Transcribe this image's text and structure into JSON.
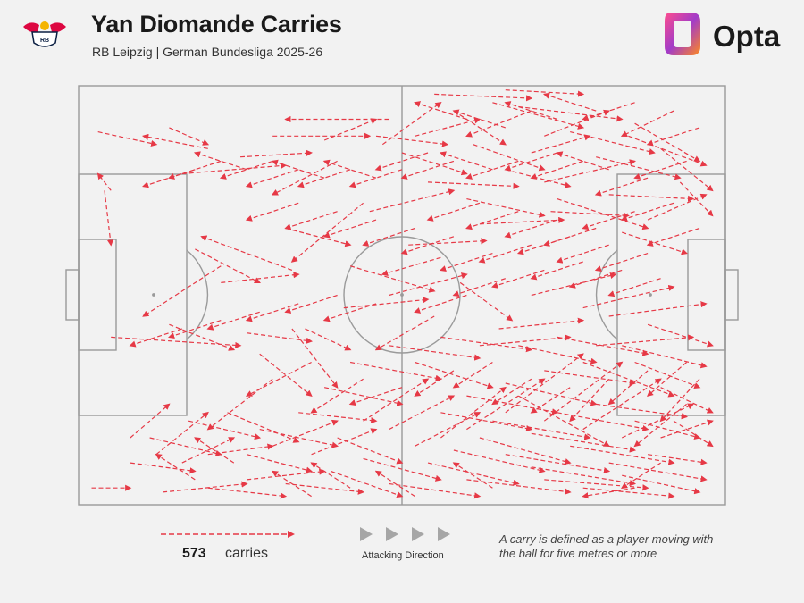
{
  "header": {
    "title": "Yan Diomande Carries",
    "subtitle": "RB Leipzig | German Bundesliga 2025-26",
    "club_logo_icon": "rb-leipzig-crest-icon",
    "brand": "Opta",
    "brand_icon": "opta-logo-icon"
  },
  "legend": {
    "count": "573",
    "count_label": "carries",
    "direction_label": "Attacking Direction",
    "definition": "A carry is defined as a player moving with the ball for five metres or more"
  },
  "colors": {
    "background": "#f2f2f2",
    "pitch_lines": "#9a9a9a",
    "carry": "#e63946",
    "direction_arrows": "#a6a6a6"
  },
  "carries": {
    "total": 573,
    "units": "pitch-percent, 0-100 along length (attacking left to right) and 0-100 across width (top to bottom)",
    "segments": [
      [
        3,
        11,
        12,
        14
      ],
      [
        20,
        15,
        10,
        12
      ],
      [
        4,
        25,
        5,
        38
      ],
      [
        5,
        25,
        3,
        21
      ],
      [
        14,
        10,
        20,
        14
      ],
      [
        16,
        21,
        32,
        19
      ],
      [
        25,
        17,
        36,
        16
      ],
      [
        30,
        12,
        45,
        12
      ],
      [
        38,
        13,
        46,
        8
      ],
      [
        46,
        12,
        57,
        14
      ],
      [
        50,
        16,
        60,
        21
      ],
      [
        48,
        8,
        32,
        8
      ],
      [
        40,
        18,
        30,
        26
      ],
      [
        44,
        28,
        33,
        42
      ],
      [
        33,
        44,
        19,
        36
      ],
      [
        22,
        43,
        10,
        55
      ],
      [
        14,
        57,
        24,
        63
      ],
      [
        5,
        60,
        25,
        62
      ],
      [
        26,
        59,
        36,
        61
      ],
      [
        35,
        58,
        42,
        63
      ],
      [
        41,
        53,
        54,
        51
      ],
      [
        55,
        55,
        46,
        63
      ],
      [
        18,
        39,
        28,
        47
      ],
      [
        22,
        47,
        34,
        45
      ],
      [
        32,
        34,
        42,
        38
      ],
      [
        42,
        43,
        55,
        49
      ],
      [
        45,
        30,
        58,
        25
      ],
      [
        54,
        23,
        68,
        24
      ],
      [
        66,
        20,
        76,
        24
      ],
      [
        73,
        30,
        85,
        31
      ],
      [
        84,
        35,
        94,
        40
      ],
      [
        82,
        26,
        95,
        27
      ],
      [
        80,
        17,
        93,
        22
      ],
      [
        76,
        11,
        89,
        16
      ],
      [
        72,
        12,
        82,
        6
      ],
      [
        70,
        6,
        60,
        12
      ],
      [
        64,
        4,
        78,
        10
      ],
      [
        58,
        6,
        66,
        14
      ],
      [
        52,
        12,
        62,
        8
      ],
      [
        47,
        14,
        56,
        4
      ],
      [
        61,
        14,
        72,
        20
      ],
      [
        70,
        16,
        79,
        12
      ],
      [
        55,
        2,
        70,
        3
      ],
      [
        66,
        1,
        78,
        2
      ],
      [
        68,
        5,
        84,
        8
      ],
      [
        86,
        9,
        96,
        18
      ],
      [
        90,
        15,
        98,
        25
      ],
      [
        93,
        23,
        98,
        31
      ],
      [
        88,
        32,
        97,
        26
      ],
      [
        85,
        12,
        97,
        19
      ],
      [
        72,
        23,
        86,
        18
      ],
      [
        74,
        27,
        88,
        34
      ],
      [
        60,
        27,
        72,
        31
      ],
      [
        62,
        33,
        75,
        32
      ],
      [
        51,
        38,
        63,
        37
      ],
      [
        56,
        41,
        47,
        45
      ],
      [
        48,
        50,
        60,
        45
      ],
      [
        59,
        47,
        67,
        56
      ],
      [
        65,
        58,
        78,
        56
      ],
      [
        70,
        50,
        83,
        45
      ],
      [
        78,
        53,
        92,
        48
      ],
      [
        82,
        55,
        97,
        52
      ],
      [
        88,
        57,
        98,
        62
      ],
      [
        84,
        62,
        97,
        67
      ],
      [
        78,
        66,
        92,
        74
      ],
      [
        72,
        68,
        86,
        71
      ],
      [
        66,
        71,
        80,
        76
      ],
      [
        60,
        74,
        74,
        78
      ],
      [
        56,
        78,
        70,
        82
      ],
      [
        64,
        80,
        79,
        84
      ],
      [
        70,
        83,
        86,
        87
      ],
      [
        76,
        86,
        92,
        90
      ],
      [
        82,
        90,
        97,
        94
      ],
      [
        70,
        91,
        86,
        95
      ],
      [
        60,
        94,
        76,
        97
      ],
      [
        54,
        90,
        68,
        95
      ],
      [
        48,
        95,
        62,
        98
      ],
      [
        44,
        89,
        56,
        94
      ],
      [
        39,
        92,
        50,
        98
      ],
      [
        32,
        95,
        44,
        97
      ],
      [
        26,
        94,
        38,
        92
      ],
      [
        20,
        96,
        32,
        98
      ],
      [
        13,
        97,
        26,
        95
      ],
      [
        2,
        96,
        8,
        96
      ],
      [
        8,
        90,
        18,
        92
      ],
      [
        11,
        84,
        22,
        88
      ],
      [
        17,
        80,
        28,
        84
      ],
      [
        23,
        78,
        34,
        85
      ],
      [
        28,
        82,
        40,
        86
      ],
      [
        34,
        78,
        46,
        80
      ],
      [
        38,
        72,
        50,
        76
      ],
      [
        42,
        66,
        56,
        70
      ],
      [
        48,
        62,
        62,
        65
      ],
      [
        52,
        66,
        64,
        72
      ],
      [
        56,
        60,
        70,
        63
      ],
      [
        62,
        62,
        76,
        60
      ],
      [
        68,
        62,
        80,
        66
      ],
      [
        74,
        60,
        88,
        64
      ],
      [
        80,
        62,
        95,
        60
      ],
      [
        86,
        66,
        96,
        72
      ],
      [
        90,
        72,
        98,
        78
      ],
      [
        92,
        80,
        98,
        86
      ],
      [
        86,
        80,
        96,
        84
      ],
      [
        80,
        76,
        94,
        79
      ],
      [
        74,
        78,
        88,
        82
      ],
      [
        68,
        74,
        82,
        86
      ],
      [
        62,
        84,
        76,
        90
      ],
      [
        58,
        87,
        72,
        92
      ],
      [
        66,
        88,
        82,
        92
      ],
      [
        72,
        94,
        88,
        96
      ],
      [
        78,
        96,
        92,
        98
      ],
      [
        84,
        93,
        96,
        97
      ],
      [
        88,
        88,
        97,
        90
      ],
      [
        90,
        84,
        98,
        80
      ],
      [
        84,
        84,
        95,
        76
      ],
      [
        78,
        82,
        90,
        70
      ],
      [
        72,
        80,
        84,
        66
      ],
      [
        66,
        78,
        78,
        64
      ],
      [
        60,
        82,
        72,
        70
      ],
      [
        56,
        84,
        66,
        72
      ],
      [
        52,
        86,
        62,
        78
      ],
      [
        48,
        82,
        58,
        74
      ],
      [
        44,
        80,
        54,
        70
      ],
      [
        40,
        84,
        50,
        90
      ],
      [
        36,
        88,
        46,
        82
      ],
      [
        30,
        86,
        40,
        80
      ],
      [
        26,
        88,
        36,
        92
      ],
      [
        20,
        88,
        30,
        86
      ],
      [
        16,
        90,
        24,
        84
      ],
      [
        12,
        88,
        20,
        78
      ],
      [
        8,
        84,
        14,
        76
      ],
      [
        30,
        70,
        20,
        82
      ],
      [
        36,
        66,
        26,
        74
      ],
      [
        33,
        58,
        40,
        72
      ],
      [
        28,
        64,
        36,
        74
      ],
      [
        44,
        70,
        36,
        78
      ],
      [
        50,
        72,
        42,
        76
      ],
      [
        58,
        68,
        52,
        74
      ],
      [
        64,
        66,
        58,
        72
      ],
      [
        70,
        70,
        64,
        76
      ],
      [
        76,
        72,
        70,
        78
      ],
      [
        82,
        70,
        76,
        80
      ],
      [
        88,
        68,
        82,
        76
      ],
      [
        94,
        66,
        88,
        74
      ],
      [
        96,
        70,
        90,
        80
      ],
      [
        94,
        76,
        86,
        86
      ],
      [
        90,
        90,
        84,
        96
      ],
      [
        86,
        96,
        78,
        98
      ],
      [
        64,
        96,
        58,
        90
      ],
      [
        52,
        98,
        46,
        92
      ],
      [
        42,
        96,
        36,
        90
      ],
      [
        36,
        98,
        30,
        92
      ],
      [
        24,
        90,
        18,
        84
      ],
      [
        18,
        94,
        12,
        88
      ],
      [
        60,
        8,
        52,
        4
      ],
      [
        66,
        10,
        58,
        6
      ],
      [
        74,
        8,
        66,
        4
      ],
      [
        80,
        6,
        72,
        2
      ],
      [
        86,
        4,
        78,
        8
      ],
      [
        92,
        6,
        84,
        12
      ],
      [
        96,
        10,
        88,
        14
      ],
      [
        94,
        18,
        86,
        22
      ],
      [
        88,
        22,
        80,
        26
      ],
      [
        82,
        20,
        74,
        16
      ],
      [
        78,
        18,
        70,
        22
      ],
      [
        74,
        16,
        66,
        20
      ],
      [
        68,
        18,
        60,
        22
      ],
      [
        64,
        20,
        56,
        16
      ],
      [
        58,
        18,
        50,
        22
      ],
      [
        54,
        16,
        46,
        20
      ],
      [
        50,
        20,
        42,
        24
      ],
      [
        46,
        22,
        38,
        18
      ],
      [
        42,
        20,
        34,
        24
      ],
      [
        38,
        22,
        30,
        18
      ],
      [
        34,
        20,
        26,
        24
      ],
      [
        30,
        18,
        22,
        22
      ],
      [
        26,
        20,
        18,
        16
      ],
      [
        22,
        18,
        14,
        22
      ],
      [
        18,
        20,
        10,
        24
      ],
      [
        60,
        50,
        52,
        54
      ],
      [
        66,
        46,
        58,
        50
      ],
      [
        72,
        44,
        64,
        48
      ],
      [
        78,
        42,
        70,
        46
      ],
      [
        84,
        44,
        76,
        48
      ],
      [
        90,
        46,
        82,
        50
      ],
      [
        64,
        40,
        56,
        44
      ],
      [
        70,
        38,
        62,
        42
      ],
      [
        76,
        36,
        68,
        40
      ],
      [
        82,
        38,
        74,
        42
      ],
      [
        88,
        40,
        80,
        44
      ],
      [
        58,
        36,
        50,
        40
      ],
      [
        52,
        34,
        44,
        38
      ],
      [
        46,
        32,
        38,
        36
      ],
      [
        40,
        30,
        32,
        34
      ],
      [
        34,
        28,
        26,
        32
      ],
      [
        46,
        52,
        38,
        56
      ],
      [
        40,
        50,
        32,
        54
      ],
      [
        34,
        52,
        26,
        56
      ],
      [
        28,
        54,
        20,
        58
      ],
      [
        22,
        56,
        14,
        60
      ],
      [
        16,
        58,
        8,
        62
      ],
      [
        62,
        28,
        54,
        32
      ],
      [
        68,
        30,
        60,
        34
      ],
      [
        74,
        32,
        66,
        36
      ],
      [
        80,
        34,
        72,
        38
      ],
      [
        86,
        30,
        78,
        34
      ],
      [
        92,
        28,
        84,
        32
      ],
      [
        96,
        34,
        88,
        38
      ]
    ]
  }
}
